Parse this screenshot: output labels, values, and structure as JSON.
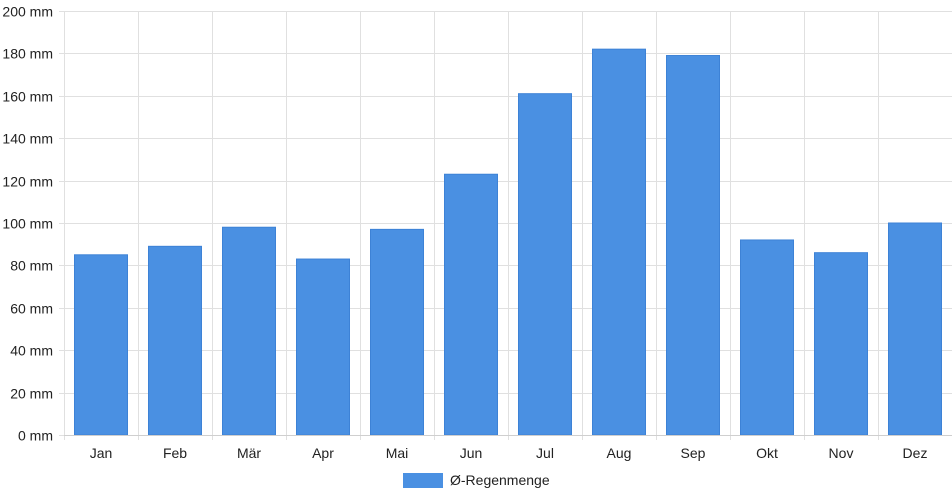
{
  "chart_data": {
    "type": "bar",
    "categories": [
      "Jan",
      "Feb",
      "Mär",
      "Apr",
      "Mai",
      "Jun",
      "Jul",
      "Aug",
      "Sep",
      "Okt",
      "Nov",
      "Dez"
    ],
    "series": [
      {
        "name": "Ø-Regenmenge",
        "values": [
          85,
          89,
          98,
          83,
          97,
          123,
          161,
          182,
          179,
          92,
          86,
          100
        ]
      }
    ],
    "ylim": [
      0,
      200
    ],
    "yticks": [
      0,
      20,
      40,
      60,
      80,
      100,
      120,
      140,
      160,
      180,
      200
    ],
    "y_unit": "mm",
    "grid": true,
    "legend_position": "bottom-center",
    "bar_color": "#4a90e2",
    "grid_color": "#e0e0e0"
  }
}
